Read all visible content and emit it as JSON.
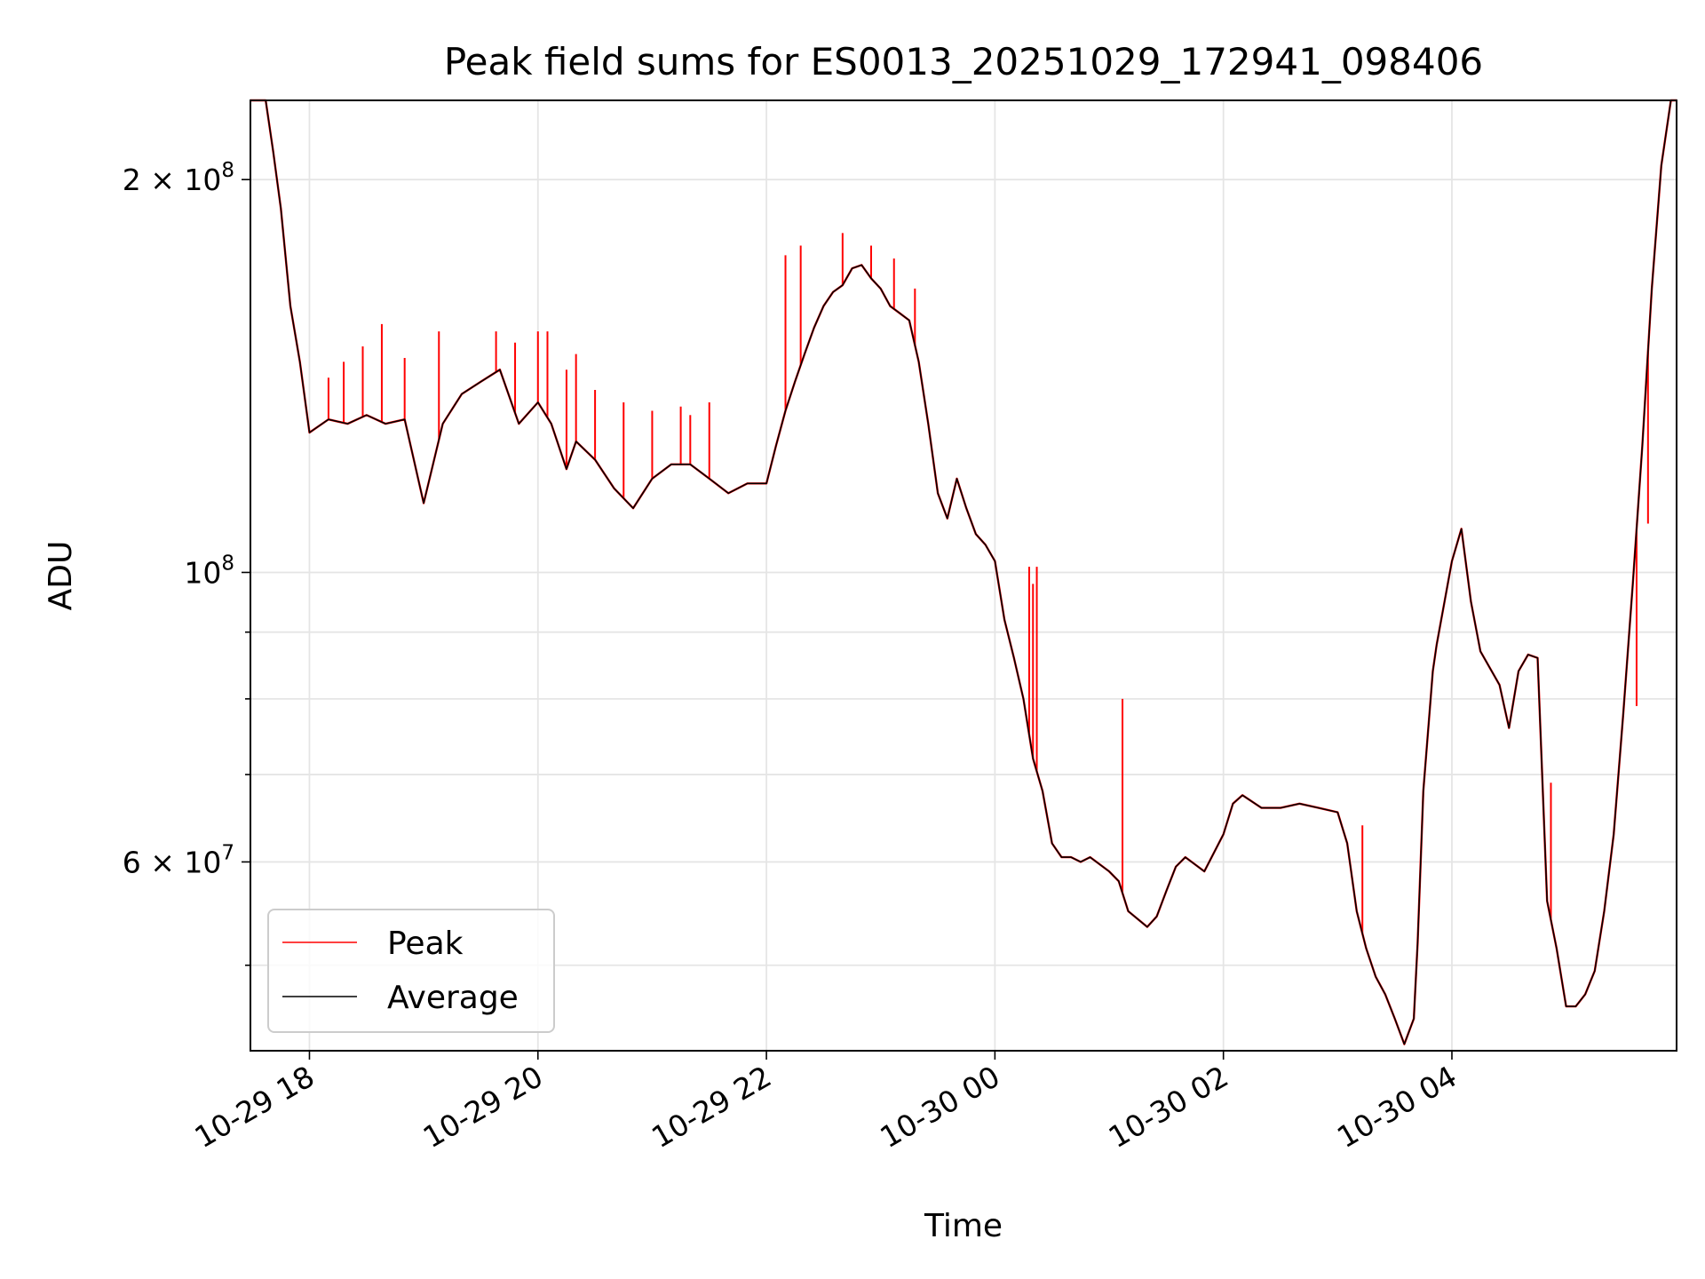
{
  "chart_data": {
    "type": "line",
    "title": "Peak field sums for ES0013_20251029_172941_098406",
    "xlabel": "Time",
    "ylabel": "ADU",
    "yscale": "log",
    "ylim": [
      43000000,
      230000000
    ],
    "xlim": [
      "2025-10-29 17:29",
      "2025-10-30 05:58"
    ],
    "grid": true,
    "legend_position": "lower left",
    "x_ticks": [
      {
        "label": "10-29 18",
        "time": "2025-10-29 18:00"
      },
      {
        "label": "10-29 20",
        "time": "2025-10-29 20:00"
      },
      {
        "label": "10-29 22",
        "time": "2025-10-29 22:00"
      },
      {
        "label": "10-30 00",
        "time": "2025-10-30 00:00"
      },
      {
        "label": "10-30 02",
        "time": "2025-10-30 02:00"
      },
      {
        "label": "10-30 04",
        "time": "2025-10-30 04:00"
      }
    ],
    "y_ticks": [
      {
        "value": 200000000,
        "mantissa": "2 × 10",
        "exponent": "8"
      },
      {
        "value": 100000000,
        "mantissa": "10",
        "exponent": "8"
      },
      {
        "value": 60000000,
        "mantissa": "6 × 10",
        "exponent": "7"
      }
    ],
    "y_minor_ticks": [
      50000000,
      70000000,
      80000000,
      90000000
    ],
    "series": [
      {
        "name": "Average",
        "color": "#000000",
        "points": [
          [
            "2025-10-29 17:29",
            230000000
          ],
          [
            "2025-10-29 17:37",
            230000000
          ],
          [
            "2025-10-29 17:41",
            210000000
          ],
          [
            "2025-10-29 17:45",
            190000000
          ],
          [
            "2025-10-29 17:50",
            160000000
          ],
          [
            "2025-10-29 17:55",
            145000000
          ],
          [
            "2025-10-29 18:00",
            128000000
          ],
          [
            "2025-10-29 18:10",
            131000000
          ],
          [
            "2025-10-29 18:20",
            130000000
          ],
          [
            "2025-10-29 18:30",
            132000000
          ],
          [
            "2025-10-29 18:40",
            130000000
          ],
          [
            "2025-10-29 18:50",
            131000000
          ],
          [
            "2025-10-29 19:00",
            113000000
          ],
          [
            "2025-10-29 19:10",
            130000000
          ],
          [
            "2025-10-29 19:20",
            137000000
          ],
          [
            "2025-10-29 19:30",
            140000000
          ],
          [
            "2025-10-29 19:40",
            143000000
          ],
          [
            "2025-10-29 19:50",
            130000000
          ],
          [
            "2025-10-29 20:00",
            135000000
          ],
          [
            "2025-10-29 20:07",
            130000000
          ],
          [
            "2025-10-29 20:15",
            120000000
          ],
          [
            "2025-10-29 20:20",
            126000000
          ],
          [
            "2025-10-29 20:30",
            122000000
          ],
          [
            "2025-10-29 20:40",
            116000000
          ],
          [
            "2025-10-29 20:50",
            112000000
          ],
          [
            "2025-10-29 21:00",
            118000000
          ],
          [
            "2025-10-29 21:10",
            121000000
          ],
          [
            "2025-10-29 21:20",
            121000000
          ],
          [
            "2025-10-29 21:30",
            118000000
          ],
          [
            "2025-10-29 21:40",
            115000000
          ],
          [
            "2025-10-29 21:50",
            117000000
          ],
          [
            "2025-10-29 22:00",
            117000000
          ],
          [
            "2025-10-29 22:05",
            125000000
          ],
          [
            "2025-10-29 22:10",
            133000000
          ],
          [
            "2025-10-29 22:15",
            140000000
          ],
          [
            "2025-10-29 22:20",
            147000000
          ],
          [
            "2025-10-29 22:25",
            154000000
          ],
          [
            "2025-10-29 22:30",
            160000000
          ],
          [
            "2025-10-29 22:35",
            164000000
          ],
          [
            "2025-10-29 22:40",
            166000000
          ],
          [
            "2025-10-29 22:45",
            171000000
          ],
          [
            "2025-10-29 22:50",
            172000000
          ],
          [
            "2025-10-29 22:55",
            168000000
          ],
          [
            "2025-10-29 23:00",
            165000000
          ],
          [
            "2025-10-29 23:05",
            160000000
          ],
          [
            "2025-10-29 23:10",
            158000000
          ],
          [
            "2025-10-29 23:15",
            156000000
          ],
          [
            "2025-10-29 23:20",
            145000000
          ],
          [
            "2025-10-29 23:25",
            130000000
          ],
          [
            "2025-10-29 23:30",
            115000000
          ],
          [
            "2025-10-29 23:35",
            110000000
          ],
          [
            "2025-10-29 23:40",
            118000000
          ],
          [
            "2025-10-29 23:45",
            112000000
          ],
          [
            "2025-10-29 23:50",
            107000000
          ],
          [
            "2025-10-29 23:55",
            105000000
          ],
          [
            "2025-10-30 00:00",
            102000000
          ],
          [
            "2025-10-30 00:05",
            92000000
          ],
          [
            "2025-10-30 00:10",
            86000000
          ],
          [
            "2025-10-30 00:15",
            80000000
          ],
          [
            "2025-10-30 00:20",
            72000000
          ],
          [
            "2025-10-30 00:25",
            68000000
          ],
          [
            "2025-10-30 00:30",
            62000000
          ],
          [
            "2025-10-30 00:35",
            60500000
          ],
          [
            "2025-10-30 00:40",
            60500000
          ],
          [
            "2025-10-30 00:45",
            60000000
          ],
          [
            "2025-10-30 00:50",
            60500000
          ],
          [
            "2025-10-30 01:00",
            59000000
          ],
          [
            "2025-10-30 01:05",
            58000000
          ],
          [
            "2025-10-30 01:10",
            55000000
          ],
          [
            "2025-10-30 01:20",
            53500000
          ],
          [
            "2025-10-30 01:25",
            54500000
          ],
          [
            "2025-10-30 01:30",
            57000000
          ],
          [
            "2025-10-30 01:35",
            59500000
          ],
          [
            "2025-10-30 01:40",
            60500000
          ],
          [
            "2025-10-30 01:50",
            59000000
          ],
          [
            "2025-10-30 02:00",
            63000000
          ],
          [
            "2025-10-30 02:05",
            66500000
          ],
          [
            "2025-10-30 02:10",
            67500000
          ],
          [
            "2025-10-30 02:20",
            66000000
          ],
          [
            "2025-10-30 02:30",
            66000000
          ],
          [
            "2025-10-30 02:40",
            66500000
          ],
          [
            "2025-10-30 02:50",
            66000000
          ],
          [
            "2025-10-30 03:00",
            65500000
          ],
          [
            "2025-10-30 03:05",
            62000000
          ],
          [
            "2025-10-30 03:10",
            55000000
          ],
          [
            "2025-10-30 03:15",
            51500000
          ],
          [
            "2025-10-30 03:20",
            49000000
          ],
          [
            "2025-10-30 03:25",
            47500000
          ],
          [
            "2025-10-30 03:30",
            45500000
          ],
          [
            "2025-10-30 03:35",
            43500000
          ],
          [
            "2025-10-30 03:40",
            45500000
          ],
          [
            "2025-10-30 03:42",
            52000000
          ],
          [
            "2025-10-30 03:45",
            68000000
          ],
          [
            "2025-10-30 03:50",
            84000000
          ],
          [
            "2025-10-30 03:52",
            88000000
          ],
          [
            "2025-10-30 04:00",
            102000000
          ],
          [
            "2025-10-30 04:05",
            108000000
          ],
          [
            "2025-10-30 04:10",
            95000000
          ],
          [
            "2025-10-30 04:15",
            87000000
          ],
          [
            "2025-10-30 04:25",
            82000000
          ],
          [
            "2025-10-30 04:30",
            76000000
          ],
          [
            "2025-10-30 04:35",
            84000000
          ],
          [
            "2025-10-30 04:40",
            86500000
          ],
          [
            "2025-10-30 04:45",
            86000000
          ],
          [
            "2025-10-30 04:50",
            56000000
          ],
          [
            "2025-10-30 04:55",
            51500000
          ],
          [
            "2025-10-30 05:00",
            46500000
          ],
          [
            "2025-10-30 05:05",
            46500000
          ],
          [
            "2025-10-30 05:10",
            47500000
          ],
          [
            "2025-10-30 05:15",
            49500000
          ],
          [
            "2025-10-30 05:20",
            55000000
          ],
          [
            "2025-10-30 05:25",
            63000000
          ],
          [
            "2025-10-30 05:30",
            78000000
          ],
          [
            "2025-10-30 05:35",
            98000000
          ],
          [
            "2025-10-30 05:40",
            125000000
          ],
          [
            "2025-10-30 05:45",
            165000000
          ],
          [
            "2025-10-30 05:50",
            205000000
          ],
          [
            "2025-10-30 05:55",
            230000000
          ],
          [
            "2025-10-30 05:58",
            230000000
          ]
        ]
      },
      {
        "name": "Peak",
        "color": "#ff0000",
        "spikes": [
          [
            "2025-10-29 18:10",
            141000000
          ],
          [
            "2025-10-29 18:18",
            145000000
          ],
          [
            "2025-10-29 18:28",
            149000000
          ],
          [
            "2025-10-29 18:38",
            155000000
          ],
          [
            "2025-10-29 18:50",
            146000000
          ],
          [
            "2025-10-29 19:08",
            153000000
          ],
          [
            "2025-10-29 19:38",
            153000000
          ],
          [
            "2025-10-29 19:48",
            150000000
          ],
          [
            "2025-10-29 20:00",
            153000000
          ],
          [
            "2025-10-29 20:05",
            153000000
          ],
          [
            "2025-10-29 20:15",
            143000000
          ],
          [
            "2025-10-29 20:20",
            147000000
          ],
          [
            "2025-10-29 20:30",
            138000000
          ],
          [
            "2025-10-29 20:45",
            135000000
          ],
          [
            "2025-10-29 21:00",
            133000000
          ],
          [
            "2025-10-29 21:15",
            134000000
          ],
          [
            "2025-10-29 21:20",
            132000000
          ],
          [
            "2025-10-29 21:30",
            135000000
          ],
          [
            "2025-10-29 22:10",
            175000000
          ],
          [
            "2025-10-29 22:18",
            178000000
          ],
          [
            "2025-10-29 22:40",
            182000000
          ],
          [
            "2025-10-29 22:55",
            178000000
          ],
          [
            "2025-10-29 23:07",
            174000000
          ],
          [
            "2025-10-29 23:18",
            165000000
          ],
          [
            "2025-10-30 00:18",
            101000000
          ],
          [
            "2025-10-30 00:20",
            98000000
          ],
          [
            "2025-10-30 00:22",
            101000000
          ],
          [
            "2025-10-30 01:07",
            80000000
          ],
          [
            "2025-10-30 03:13",
            64000000
          ],
          [
            "2025-10-30 04:52",
            69000000
          ],
          [
            "2025-10-30 05:37",
            79000000
          ],
          [
            "2025-10-30 05:43",
            109000000
          ]
        ]
      }
    ]
  }
}
